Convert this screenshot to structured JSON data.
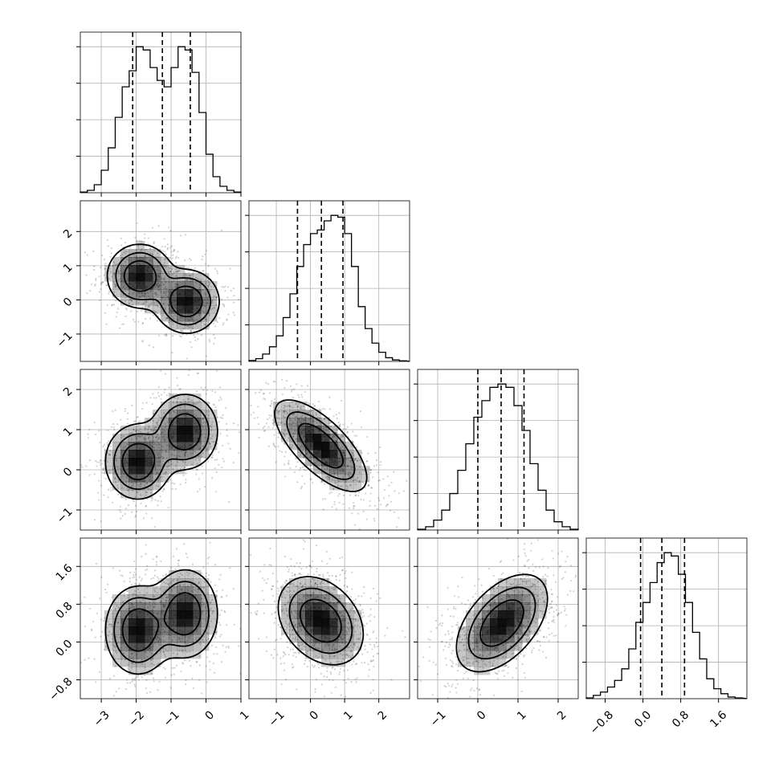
{
  "chart_data": {
    "type": "corner",
    "variables": 4,
    "grid": true,
    "quantiles": [
      0.16,
      0.5,
      0.84
    ],
    "colors": {
      "line": "#000000",
      "grid": "#b0b0b0",
      "density": "#000000"
    },
    "diagonal": [
      {
        "variable_index": 0,
        "range": [
          -3.6,
          1.0
        ],
        "quantile_values": [
          -2.1,
          -1.25,
          -0.45
        ],
        "hist_bins": [
          -3.6,
          -3.4,
          -3.2,
          -3.0,
          -2.8,
          -2.6,
          -2.4,
          -2.2,
          -2.0,
          -1.8,
          -1.6,
          -1.4,
          -1.2,
          -1.0,
          -0.8,
          -0.6,
          -0.4,
          -0.2,
          0.0,
          0.2,
          0.4,
          0.6,
          0.8
        ],
        "hist_values": [
          0.4,
          1.5,
          5,
          14,
          28,
          47,
          66,
          76,
          91,
          89,
          78,
          70,
          66,
          78,
          91,
          89,
          75,
          50,
          24,
          10,
          4,
          1.5,
          0.4
        ]
      },
      {
        "variable_index": 1,
        "range": [
          -1.8,
          2.9
        ],
        "quantile_values": [
          -0.38,
          0.32,
          0.95
        ],
        "hist_bins": [
          -1.8,
          -1.6,
          -1.4,
          -1.2,
          -1.0,
          -0.8,
          -0.6,
          -0.4,
          -0.2,
          0.0,
          0.2,
          0.4,
          0.6,
          0.8,
          1.0,
          1.2,
          1.4,
          1.6,
          1.8,
          2.0,
          2.2,
          2.4,
          2.6
        ],
        "hist_values": [
          0.5,
          1.5,
          4,
          8,
          14,
          24,
          37,
          52,
          64,
          70,
          72,
          77,
          80,
          79,
          70,
          52,
          30,
          18,
          10,
          5,
          2,
          0.8,
          0.3
        ]
      },
      {
        "variable_index": 2,
        "range": [
          -1.5,
          2.5
        ],
        "quantile_values": [
          0.0,
          0.58,
          1.15
        ],
        "hist_bins": [
          -1.5,
          -1.3,
          -1.1,
          -0.9,
          -0.7,
          -0.5,
          -0.3,
          -0.1,
          0.1,
          0.3,
          0.5,
          0.7,
          0.9,
          1.1,
          1.3,
          1.5,
          1.7,
          1.9,
          2.1,
          2.3
        ],
        "hist_values": [
          0.5,
          2,
          6,
          12,
          22,
          36,
          52,
          68,
          78,
          86,
          88,
          86,
          75,
          60,
          40,
          24,
          12,
          5,
          2,
          0.5
        ]
      },
      {
        "variable_index": 3,
        "range": [
          -1.2,
          2.2
        ],
        "quantile_values": [
          -0.05,
          0.4,
          0.88
        ],
        "hist_bins": [
          -1.2,
          -1.05,
          -0.9,
          -0.75,
          -0.6,
          -0.45,
          -0.3,
          -0.15,
          0.0,
          0.15,
          0.3,
          0.45,
          0.6,
          0.75,
          0.9,
          1.05,
          1.2,
          1.35,
          1.5,
          1.65,
          1.8,
          1.95
        ],
        "hist_values": [
          0.5,
          2,
          4,
          7,
          11,
          18,
          30,
          46,
          58,
          70,
          82,
          88,
          86,
          75,
          58,
          40,
          24,
          12,
          6,
          3,
          1,
          0.5
        ]
      }
    ],
    "pairs": [
      {
        "x_index": 0,
        "y_index": 1,
        "modes": [
          {
            "mean": [
              -1.9,
              0.7
            ],
            "sd": [
              0.45,
              0.45
            ],
            "rho": 0.0,
            "weight": 1.0
          },
          {
            "mean": [
              -0.55,
              -0.05
            ],
            "sd": [
              0.45,
              0.45
            ],
            "rho": 0.0,
            "weight": 1.0
          }
        ]
      },
      {
        "x_index": 0,
        "y_index": 2,
        "modes": [
          {
            "mean": [
              -1.95,
              0.2
            ],
            "sd": [
              0.45,
              0.45
            ],
            "rho": 0.0,
            "weight": 1.0
          },
          {
            "mean": [
              -0.6,
              0.95
            ],
            "sd": [
              0.45,
              0.45
            ],
            "rho": 0.0,
            "weight": 1.0
          }
        ]
      },
      {
        "x_index": 1,
        "y_index": 2,
        "modes": [
          {
            "mean": [
              0.3,
              0.6
            ],
            "sd": [
              0.65,
              0.55
            ],
            "rho": -0.7,
            "weight": 1.0
          }
        ]
      },
      {
        "x_index": 0,
        "y_index": 3,
        "modes": [
          {
            "mean": [
              -1.95,
              0.25
            ],
            "sd": [
              0.45,
              0.45
            ],
            "rho": 0.0,
            "weight": 1.0
          },
          {
            "mean": [
              -0.6,
              0.6
            ],
            "sd": [
              0.45,
              0.45
            ],
            "rho": 0.0,
            "weight": 1.0
          }
        ]
      },
      {
        "x_index": 1,
        "y_index": 3,
        "modes": [
          {
            "mean": [
              0.3,
              0.45
            ],
            "sd": [
              0.6,
              0.45
            ],
            "rho": -0.3,
            "weight": 1.0
          }
        ]
      },
      {
        "x_index": 2,
        "y_index": 3,
        "modes": [
          {
            "mean": [
              0.6,
              0.4
            ],
            "sd": [
              0.55,
              0.5
            ],
            "rho": 0.5,
            "weight": 1.0
          }
        ]
      }
    ],
    "ticks": [
      {
        "values": [
          -3,
          -2,
          -1,
          0,
          1
        ],
        "labels": [
          "−3",
          "−2",
          "−1",
          "0",
          "1"
        ]
      },
      {
        "values": [
          -1,
          0,
          1,
          2
        ],
        "labels": [
          "−1",
          "0",
          "1",
          "2"
        ]
      },
      {
        "values": [
          -1,
          0,
          1,
          2
        ],
        "labels": [
          "−1",
          "0",
          "1",
          "2"
        ]
      },
      {
        "values": [
          -0.8,
          0.0,
          0.8,
          1.6
        ],
        "labels": [
          "−0.8",
          "0.0",
          "0.8",
          "1.6"
        ]
      }
    ]
  }
}
